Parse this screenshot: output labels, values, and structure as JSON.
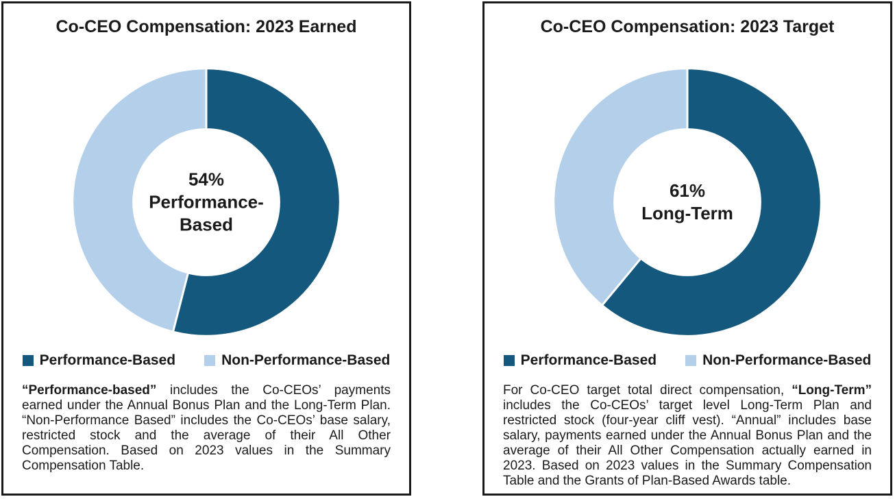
{
  "colors": {
    "performance_based": "#14587D",
    "non_performance_based": "#B3CFE9",
    "text": "#1A1A1A",
    "panel_border": "#1A1A1A",
    "slice_gap_stroke": "#FFFFFF"
  },
  "charts": [
    {
      "title": "Co-CEO Compensation: 2023 Earned",
      "center_label": "54%\nPerformance-\nBased",
      "legend": [
        {
          "label": "Performance-Based",
          "color": "#14587D"
        },
        {
          "label": "Non-Performance-Based",
          "color": "#B3CFE9"
        }
      ],
      "footnote": {
        "pre": "",
        "bold": "“Performance-based”",
        "post": " includes the Co-CEOs’ payments earned under the Annual Bonus Plan and the Long-Term Plan. “Non-Performance Based” includes the Co-CEOs’ base salary, restricted stock and the average of their All Other Compensation. Based on 2023 values in the Summary Compensation Table."
      }
    },
    {
      "title": "Co-CEO Compensation: 2023 Target",
      "center_label": "61%\nLong-Term",
      "legend": [
        {
          "label": "Performance-Based",
          "color": "#14587D"
        },
        {
          "label": "Non-Performance-Based",
          "color": "#B3CFE9"
        }
      ],
      "footnote": {
        "pre": "For Co-CEO target total direct compensation, ",
        "bold": "“Long-Term”",
        "post": " includes the Co-CEOs’ target level Long-Term Plan and restricted stock (four-year cliff vest). “Annual” includes base salary, payments earned under the Annual Bonus Plan and the average of their All Other Compensation actually earned in 2023. Based on 2023 values in the Summary Compensation Table and the Grants of Plan-Based Awards table."
      }
    }
  ],
  "chart_data": [
    {
      "type": "pie",
      "donut": true,
      "title": "Co-CEO Compensation: 2023 Earned",
      "center_label": "54% Performance-Based",
      "start_angle_deg": 0,
      "direction": "clockwise",
      "legend_position": "bottom",
      "slices": [
        {
          "label": "Performance-Based",
          "value": 54,
          "color": "#14587D"
        },
        {
          "label": "Non-Performance-Based",
          "value": 46,
          "color": "#B3CFE9"
        }
      ]
    },
    {
      "type": "pie",
      "donut": true,
      "title": "Co-CEO Compensation: 2023 Target",
      "center_label": "61% Long-Term",
      "start_angle_deg": 0,
      "direction": "clockwise",
      "legend_position": "bottom",
      "slices": [
        {
          "label": "Performance-Based",
          "value": 61,
          "color": "#14587D"
        },
        {
          "label": "Non-Performance-Based",
          "value": 39,
          "color": "#B3CFE9"
        }
      ]
    }
  ]
}
